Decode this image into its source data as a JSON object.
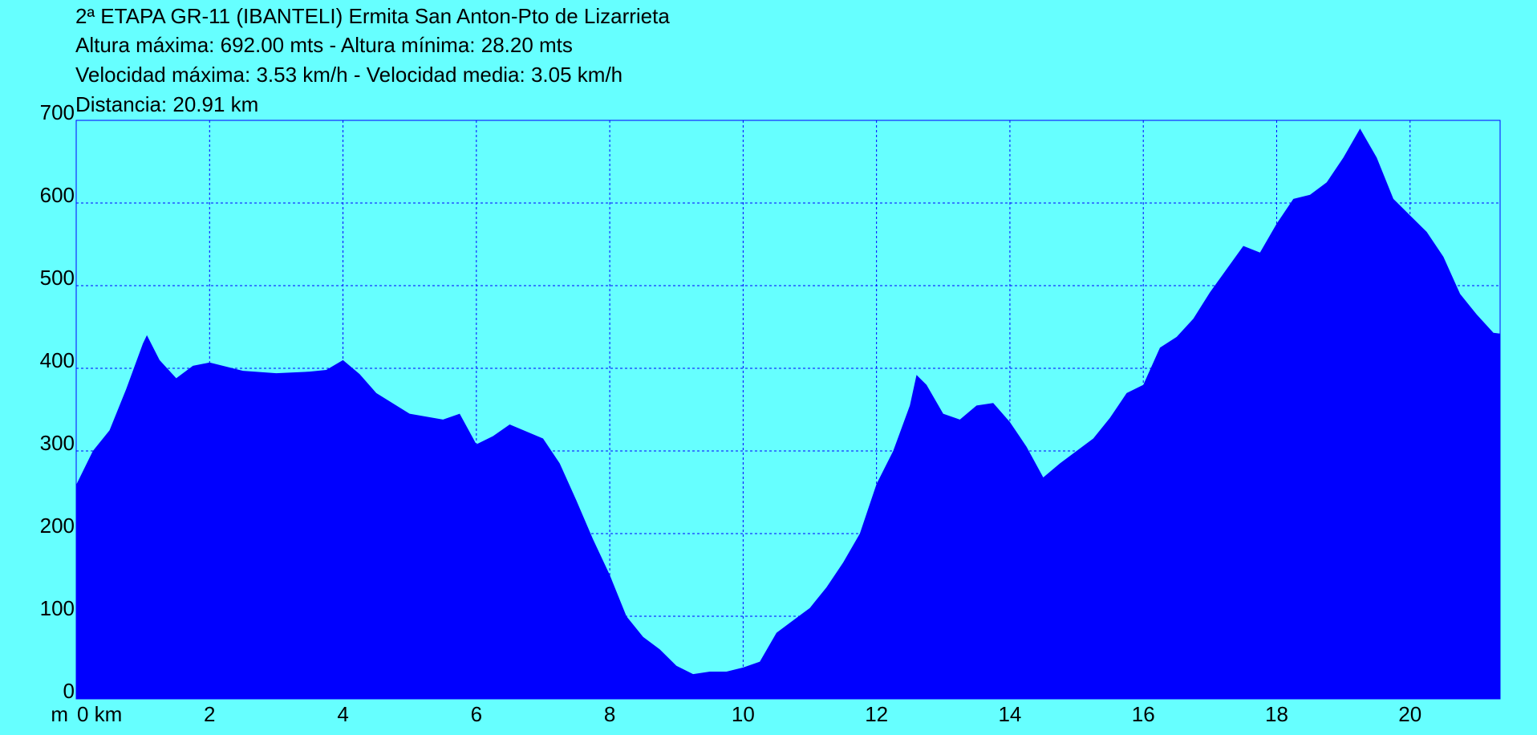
{
  "chart_data": {
    "type": "area",
    "title": "2ª ETAPA GR-11 (IBANTELI) Ermita San Anton-Pto de Lizarrieta",
    "info": [
      "Altura máxima: 692.00 mts - Altura mínima: 28.20 mts",
      "Velocidad máxima: 3.53 km/h - Velocidad media: 3.05 km/h",
      "Distancia: 20.91 km"
    ],
    "y_unit": "m",
    "x": [
      0,
      0.25,
      0.5,
      0.75,
      1.0,
      1.06,
      1.25,
      1.5,
      1.75,
      2.0,
      2.5,
      3.0,
      3.5,
      3.75,
      4.0,
      4.25,
      4.5,
      5.0,
      5.5,
      5.75,
      6.0,
      6.25,
      6.5,
      7.0,
      7.25,
      7.5,
      7.75,
      8.0,
      8.25,
      8.5,
      8.75,
      9.0,
      9.25,
      9.5,
      9.75,
      10.0,
      10.25,
      10.5,
      10.75,
      11.0,
      11.25,
      11.5,
      11.75,
      12.0,
      12.25,
      12.5,
      12.6,
      12.75,
      13.0,
      13.25,
      13.5,
      13.75,
      14.0,
      14.25,
      14.5,
      14.75,
      15.0,
      15.25,
      15.5,
      15.75,
      16.0,
      16.25,
      16.5,
      16.75,
      17.0,
      17.25,
      17.5,
      17.75,
      18.0,
      18.25,
      18.5,
      18.75,
      19.0,
      19.25,
      19.5,
      19.75,
      20.0,
      20.25,
      20.5,
      20.75,
      21.0,
      21.25,
      21.35
    ],
    "values": [
      259,
      300,
      325,
      375,
      430,
      440,
      410,
      388,
      403,
      407,
      397,
      394,
      396,
      398,
      410,
      393,
      370,
      345,
      338,
      345,
      308,
      318,
      332,
      315,
      285,
      240,
      193,
      150,
      100,
      75,
      60,
      40,
      30,
      33,
      33,
      38,
      45,
      80,
      95,
      110,
      135,
      165,
      200,
      260,
      300,
      355,
      392,
      380,
      345,
      338,
      355,
      358,
      335,
      305,
      268,
      285,
      300,
      315,
      340,
      370,
      380,
      425,
      438,
      460,
      492,
      520,
      548,
      540,
      575,
      605,
      610,
      625,
      655,
      690,
      655,
      605,
      585,
      565,
      535,
      490,
      465,
      443,
      442
    ],
    "color": "#0000ff",
    "xlim": [
      0,
      21.35
    ],
    "ylim": [
      0,
      700
    ],
    "xticks": [
      {
        "value": 0,
        "label": "0 km"
      },
      2,
      4,
      6,
      8,
      10,
      12,
      14,
      16,
      18,
      20
    ],
    "yticks": [
      0,
      100,
      200,
      300,
      400,
      500,
      600,
      700
    ],
    "grid": true
  }
}
